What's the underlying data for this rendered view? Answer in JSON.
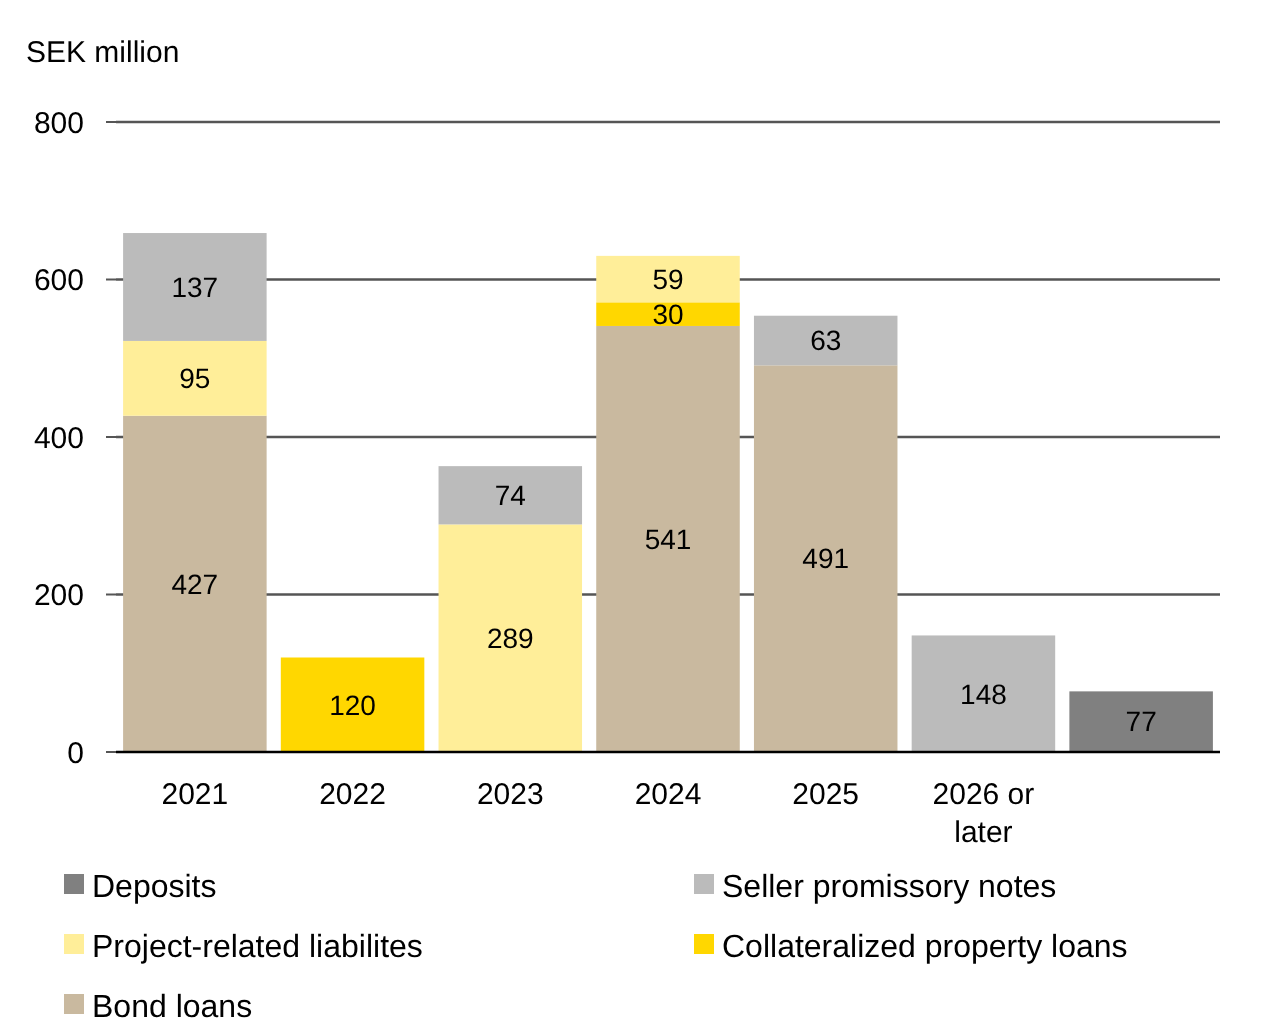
{
  "chart_data": {
    "type": "bar",
    "stacked": true,
    "ylabel": "SEK million",
    "categories": [
      "2021",
      "2022",
      "2023",
      "2024",
      "2025",
      "2026 or later",
      null
    ],
    "series": [
      {
        "name": "Bond loans",
        "color": "#c9b99f",
        "values": [
          427,
          null,
          null,
          541,
          491,
          null,
          null
        ]
      },
      {
        "name": "Collateralized property loans",
        "color": "#ffd700",
        "values": [
          null,
          120,
          null,
          30,
          null,
          null,
          null
        ]
      },
      {
        "name": "Project-related liabilites",
        "color": "#ffee99",
        "values": [
          95,
          null,
          289,
          59,
          null,
          null,
          null
        ]
      },
      {
        "name": "Seller promissory notes",
        "color": "#bbbbbb",
        "values": [
          137,
          null,
          74,
          null,
          63,
          148,
          null
        ]
      },
      {
        "name": "Deposits",
        "color": "#808080",
        "values": [
          null,
          null,
          null,
          null,
          null,
          null,
          77
        ]
      }
    ],
    "ylim": [
      0,
      800
    ],
    "yticks": [
      0,
      200,
      400,
      600,
      800
    ],
    "grid": "y",
    "legend": "bottom",
    "data_labels": true
  }
}
